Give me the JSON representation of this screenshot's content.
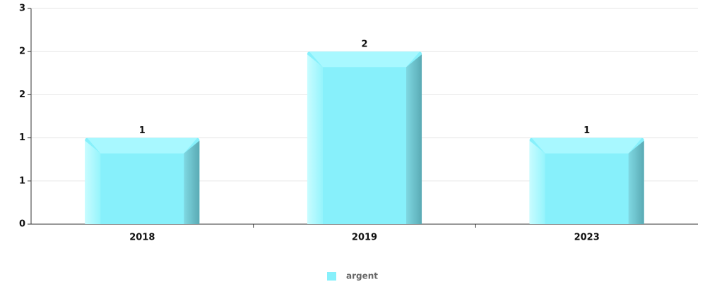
{
  "chart_data": {
    "type": "bar",
    "categories": [
      "2018",
      "2019",
      "2023"
    ],
    "series": [
      {
        "name": "argent",
        "color": "#87f0fb",
        "values": [
          1,
          2,
          1
        ],
        "value_labels": [
          "1",
          "2",
          "1"
        ]
      }
    ],
    "ylim": [
      0,
      2.5
    ],
    "yticks": [
      {
        "value": 0,
        "label": "0"
      },
      {
        "value": 0.5,
        "label": "1"
      },
      {
        "value": 1,
        "label": "1"
      },
      {
        "value": 1.5,
        "label": "2"
      },
      {
        "value": 2,
        "label": "2"
      },
      {
        "value": 2.5,
        "label": "3"
      }
    ],
    "grid": true,
    "legend": "bottom"
  }
}
